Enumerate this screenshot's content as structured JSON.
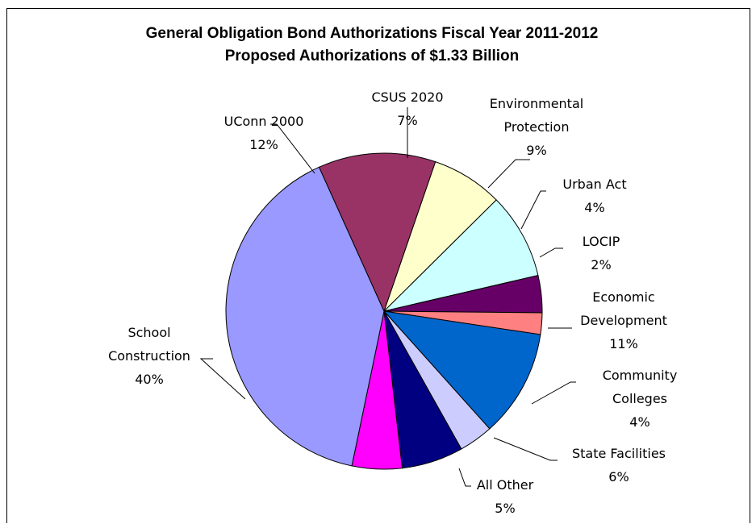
{
  "chart_data": {
    "type": "pie",
    "title": "General Obligation Bond Authorizations Fiscal Year 2011-2012",
    "subtitle": "Proposed Authorizations of $1.33  Billion",
    "slices": [
      {
        "name": "CSUS 2020",
        "label_lines": [
          "CSUS 2020"
        ],
        "percent_label": "7%",
        "value": 7.3,
        "color": "#ffffcc"
      },
      {
        "name": "Environmental Protection",
        "label_lines": [
          "Environmental",
          "Protection"
        ],
        "percent_label": "9%",
        "value": 8.8,
        "color": "#ccffff"
      },
      {
        "name": "Urban Act",
        "label_lines": [
          "Urban Act"
        ],
        "percent_label": "4%",
        "value": 3.8,
        "color": "#660066"
      },
      {
        "name": "LOCIP",
        "label_lines": [
          "LOCIP"
        ],
        "percent_label": "2%",
        "value": 2.2,
        "color": "#ff8080"
      },
      {
        "name": "Economic Development",
        "label_lines": [
          "Economic",
          "Development"
        ],
        "percent_label": "11%",
        "value": 11.0,
        "color": "#0066cc"
      },
      {
        "name": "Community Colleges",
        "label_lines": [
          "Community",
          "Colleges"
        ],
        "percent_label": "4%",
        "value": 3.5,
        "color": "#ccccff"
      },
      {
        "name": "State Facilities",
        "label_lines": [
          "State Facilities"
        ],
        "percent_label": "6%",
        "value": 6.3,
        "color": "#000080"
      },
      {
        "name": "All Other",
        "label_lines": [
          "All Other"
        ],
        "percent_label": "5%",
        "value": 5.1,
        "color": "#ff00ff"
      },
      {
        "name": "School Construction",
        "label_lines": [
          "School",
          "Construction"
        ],
        "percent_label": "40%",
        "value": 40.0,
        "color": "#9999ff"
      },
      {
        "name": "UConn 2000",
        "label_lines": [
          "UConn 2000"
        ],
        "percent_label": "12%",
        "value": 12.0,
        "color": "#993366"
      }
    ]
  }
}
